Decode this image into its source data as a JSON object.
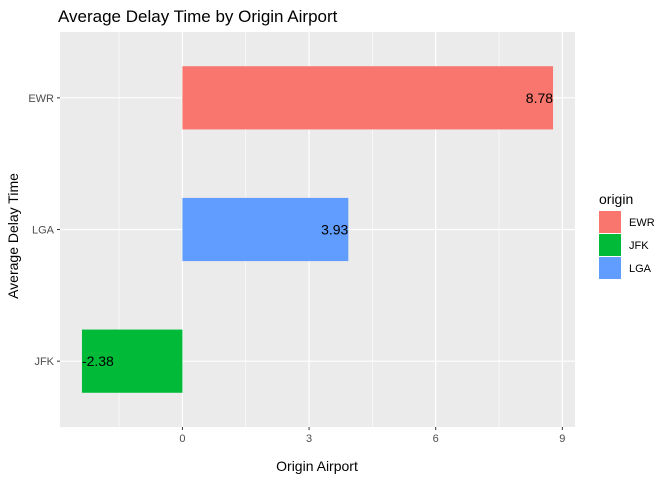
{
  "chart_data": {
    "type": "bar",
    "orientation": "horizontal",
    "title": "Average Delay Time by Origin Airport",
    "xlabel": "Origin Airport",
    "ylabel": "Average Delay Time",
    "categories": [
      "EWR",
      "LGA",
      "JFK"
    ],
    "values": [
      8.78,
      3.93,
      -2.38
    ],
    "value_labels": [
      "8.78",
      "3.93",
      "-2.38"
    ],
    "colors": [
      "#F8766D",
      "#619CFF",
      "#00BA38"
    ],
    "xlim": [
      -2.9,
      9.3
    ],
    "xticks": [
      0,
      3,
      6,
      9
    ],
    "xtick_labels": [
      "0",
      "3",
      "6",
      "9"
    ],
    "grid": true,
    "legend": {
      "title": "origin",
      "position": "right",
      "entries": [
        {
          "label": "EWR",
          "color": "#F8766D"
        },
        {
          "label": "JFK",
          "color": "#00BA38"
        },
        {
          "label": "LGA",
          "color": "#619CFF"
        }
      ]
    }
  }
}
